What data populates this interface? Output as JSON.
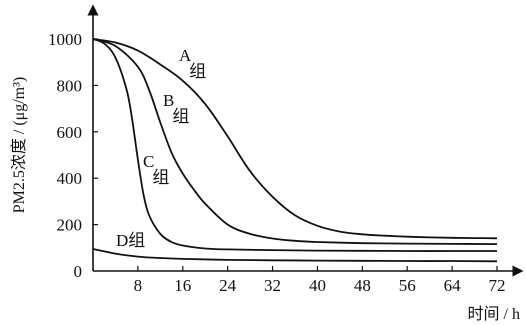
{
  "chart_data": {
    "type": "line",
    "xlabel": "时间 / h",
    "ylabel": "PM2.5浓度 / (μg/m³)",
    "x_ticks": [
      8,
      16,
      24,
      32,
      40,
      48,
      56,
      64,
      72
    ],
    "y_ticks": [
      0,
      200,
      400,
      600,
      800,
      1000
    ],
    "xlim": [
      0,
      72
    ],
    "ylim": [
      0,
      1000
    ],
    "grid": false,
    "legend": "none",
    "series": [
      {
        "name": "A组",
        "x": [
          0,
          4,
          8,
          12,
          16,
          20,
          24,
          28,
          32,
          36,
          40,
          44,
          48,
          52,
          56,
          60,
          64,
          68,
          72
        ],
        "y": [
          1000,
          985,
          950,
          890,
          820,
          720,
          580,
          430,
          320,
          240,
          195,
          170,
          158,
          152,
          148,
          145,
          143,
          142,
          141
        ]
      },
      {
        "name": "B组",
        "x": [
          0,
          4,
          8,
          10,
          12,
          14,
          16,
          18,
          20,
          24,
          28,
          32,
          36,
          40,
          48,
          56,
          64,
          72
        ],
        "y": [
          1000,
          970,
          880,
          780,
          640,
          510,
          420,
          350,
          290,
          200,
          160,
          140,
          130,
          125,
          120,
          118,
          117,
          116
        ]
      },
      {
        "name": "C组",
        "x": [
          0,
          2,
          4,
          6,
          7,
          8,
          9,
          10,
          12,
          14,
          16,
          20,
          24,
          32,
          40,
          48,
          56,
          64,
          72
        ],
        "y": [
          1000,
          980,
          920,
          780,
          650,
          480,
          330,
          240,
          160,
          125,
          110,
          97,
          93,
          90,
          88,
          87,
          86,
          86,
          86
        ]
      },
      {
        "name": "D组",
        "x": [
          0,
          4,
          8,
          12,
          16,
          24,
          32,
          40,
          48,
          56,
          64,
          72
        ],
        "y": [
          95,
          75,
          62,
          56,
          52,
          48,
          46,
          45,
          44,
          43,
          43,
          42
        ]
      }
    ]
  }
}
